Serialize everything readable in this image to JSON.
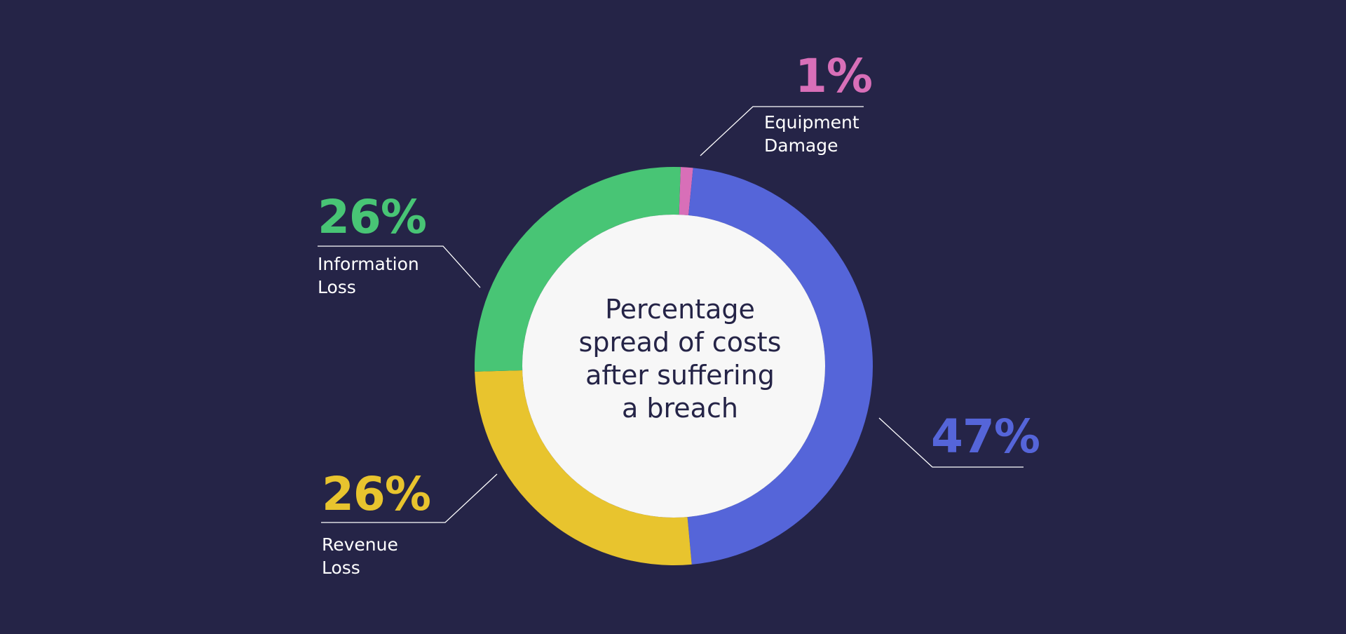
{
  "background_color": "#252447",
  "center_fill": "#f7f7f7",
  "title_lines": [
    "Percentage",
    "spread of costs",
    "after suffering",
    "a breach"
  ],
  "chart_data": {
    "type": "pie",
    "donut": true,
    "title": "Percentage spread of costs after suffering a breach",
    "slices": [
      {
        "label": "Equipment Damage",
        "label_lines": [
          "Equipment",
          "Damage"
        ],
        "value": 1,
        "value_label": "1%",
        "color": "#d86fb8"
      },
      {
        "label": "",
        "label_lines": [],
        "value": 47,
        "value_label": "47%",
        "color": "#5565d9"
      },
      {
        "label": "Revenue Loss",
        "label_lines": [
          "Revenue",
          "Loss"
        ],
        "value": 26,
        "value_label": "26%",
        "color": "#e8c42e"
      },
      {
        "label": "Information Loss",
        "label_lines": [
          "Information",
          "Loss"
        ],
        "value": 26,
        "value_label": "26%",
        "color": "#48c575"
      }
    ]
  }
}
